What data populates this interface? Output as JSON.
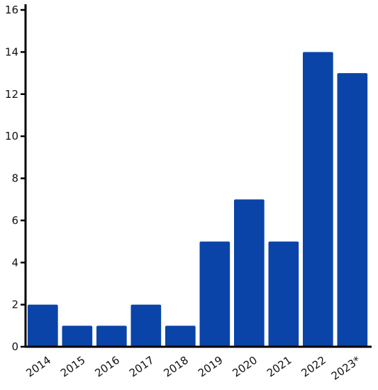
{
  "chart_data": {
    "type": "bar",
    "title": "",
    "xlabel": "",
    "ylabel": "",
    "categories": [
      "2014",
      "2015",
      "2016",
      "2017",
      "2018",
      "2019",
      "2020",
      "2021",
      "2022",
      "2023*"
    ],
    "values": [
      2,
      1,
      1,
      2,
      1,
      5,
      7,
      5,
      14,
      13
    ],
    "ylim": [
      0,
      16
    ],
    "yticks": [
      0,
      2,
      4,
      6,
      8,
      10,
      12,
      14,
      16
    ],
    "grid": false,
    "legend": "none",
    "colors": {
      "bar": "#0a44a8",
      "axis": "#000000"
    }
  }
}
